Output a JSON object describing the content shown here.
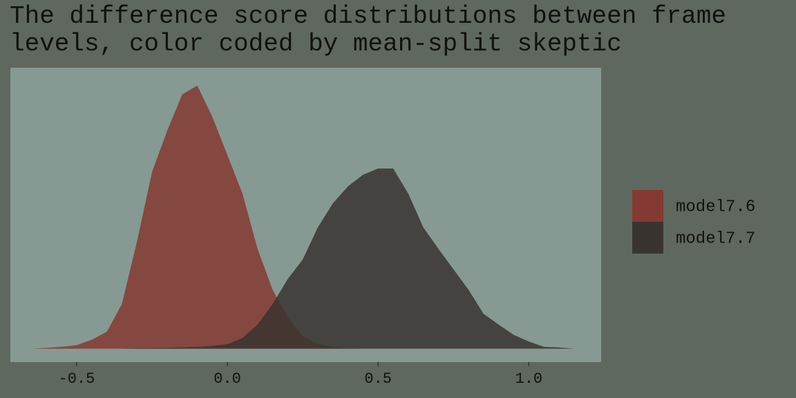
{
  "chart_data": {
    "type": "density",
    "title": "The difference score distributions between frame levels, color coded by mean-split skeptic",
    "x": [
      -0.65,
      -0.6,
      -0.55,
      -0.5,
      -0.45,
      -0.4,
      -0.35,
      -0.3,
      -0.25,
      -0.2,
      -0.15,
      -0.1,
      -0.05,
      0,
      0.05,
      0.1,
      0.15,
      0.2,
      0.25,
      0.3,
      0.35,
      0.4,
      0.45,
      0.5,
      0.55,
      0.6,
      0.65,
      0.7,
      0.75,
      0.8,
      0.85,
      0.9,
      0.95,
      1.0,
      1.05,
      1.1,
      1.15
    ],
    "series": [
      {
        "name": "model7.6",
        "color": "#843a33",
        "values": [
          0,
          0.01,
          0.02,
          0.04,
          0.1,
          0.19,
          0.5,
          1.2,
          1.98,
          2.44,
          2.85,
          2.95,
          2.6,
          2.17,
          1.74,
          1.12,
          0.66,
          0.35,
          0.14,
          0.05,
          0.02,
          0.005,
          0,
          0,
          0,
          0,
          0,
          0,
          0,
          0,
          0,
          0,
          0,
          0,
          0,
          0,
          0
        ]
      },
      {
        "name": "model7.7",
        "color": "#3a3430",
        "values": [
          0,
          0,
          0,
          0,
          0,
          0,
          0,
          0.005,
          0.008,
          0.01,
          0.015,
          0.02,
          0.03,
          0.05,
          0.12,
          0.27,
          0.5,
          0.78,
          1.0,
          1.36,
          1.63,
          1.82,
          1.95,
          2.02,
          2.02,
          1.74,
          1.36,
          1.12,
          0.89,
          0.66,
          0.39,
          0.27,
          0.155,
          0.08,
          0.02,
          0.015,
          0
        ]
      }
    ],
    "xlim": [
      -0.72,
      1.24
    ],
    "ylim": [
      -0.15,
      3.15
    ],
    "xticks": [
      {
        "value": -0.5,
        "label": "-0.5"
      },
      {
        "value": 0,
        "label": "0.0"
      },
      {
        "value": 0.5,
        "label": "0.5"
      },
      {
        "value": 1,
        "label": "1.0"
      }
    ],
    "grid": false
  }
}
